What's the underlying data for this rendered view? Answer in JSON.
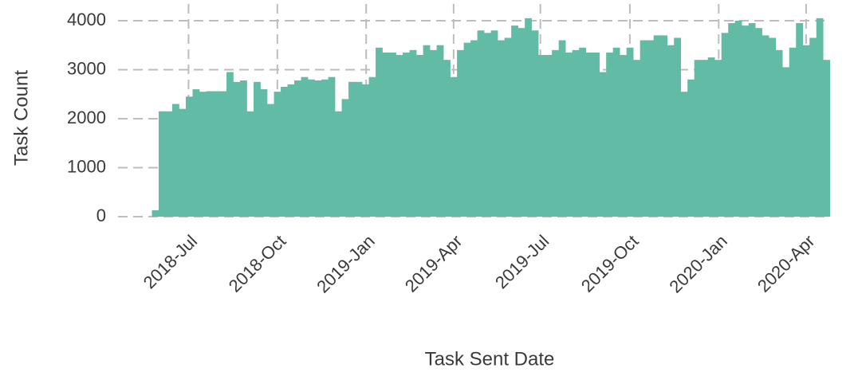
{
  "chart_data": {
    "type": "bar",
    "x_label": "Task Sent Date",
    "y_label": "Task Count",
    "categories": [
      null,
      null,
      null,
      null,
      null,
      null,
      null,
      null,
      null,
      null,
      null,
      null,
      null,
      null,
      null,
      null,
      null,
      null,
      null,
      null,
      null,
      null,
      null,
      null,
      null,
      null,
      null,
      null,
      null,
      null,
      null,
      null,
      null,
      null,
      null,
      null,
      null,
      null,
      null,
      null,
      null,
      null,
      null,
      null,
      null,
      null,
      null,
      null,
      null,
      null,
      null,
      null,
      null,
      null,
      null,
      null,
      null,
      null,
      null,
      null,
      null,
      null,
      null,
      null,
      null,
      null,
      null,
      null,
      null,
      null,
      null,
      null,
      null,
      null,
      null,
      null,
      null,
      null,
      null,
      null,
      null,
      null,
      null,
      null,
      null,
      null,
      null,
      null,
      null,
      null,
      null,
      null,
      null,
      null,
      null,
      null,
      null,
      null,
      null,
      null
    ],
    "values": [
      130,
      2150,
      2150,
      2300,
      2200,
      2450,
      2600,
      2550,
      2560,
      2560,
      2560,
      2950,
      2750,
      2780,
      2150,
      2750,
      2600,
      2300,
      2550,
      2650,
      2700,
      2780,
      2850,
      2800,
      2780,
      2800,
      2850,
      2150,
      2400,
      2750,
      2750,
      2700,
      2850,
      3450,
      3350,
      3350,
      3300,
      3350,
      3400,
      3300,
      3500,
      3400,
      3500,
      3200,
      2850,
      3400,
      3550,
      3600,
      3800,
      3750,
      3800,
      3600,
      3650,
      3900,
      3850,
      4050,
      3800,
      3300,
      3300,
      3400,
      3600,
      3350,
      3400,
      3450,
      3350,
      3350,
      2950,
      3350,
      3450,
      3300,
      3450,
      3200,
      3600,
      3600,
      3700,
      3700,
      3500,
      3650,
      2550,
      2800,
      3200,
      3200,
      3250,
      3200,
      3750,
      3950,
      4000,
      3900,
      3950,
      3850,
      3700,
      3650,
      3400,
      3050,
      3450,
      3950,
      3500,
      3650,
      4050,
      3200
    ],
    "color": "#62bba5",
    "xlim": [
      -5,
      100.5
    ],
    "xticks": [
      {
        "value": 5.4,
        "label": "2018-Jul"
      },
      {
        "value": 18.5,
        "label": "2018-Oct"
      },
      {
        "value": 31.6,
        "label": "2019-Jan"
      },
      {
        "value": 44.5,
        "label": "2019-Apr"
      },
      {
        "value": 57.3,
        "label": "2019-Jul"
      },
      {
        "value": 70.5,
        "label": "2019-Oct"
      },
      {
        "value": 83.6,
        "label": "2020-Jan"
      },
      {
        "value": 96.5,
        "label": "2020-Apr"
      }
    ],
    "ylim": [
      0,
      4300
    ],
    "yticks": [
      0,
      1000,
      2000,
      3000,
      4000
    ],
    "grid": true
  }
}
